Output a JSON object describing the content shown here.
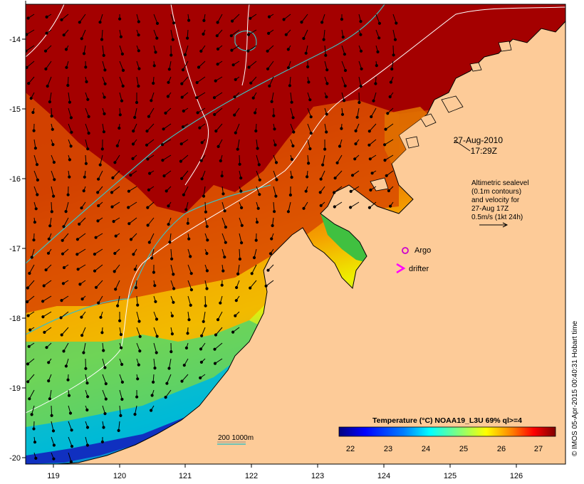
{
  "map": {
    "x_ticks": [
      "119",
      "120",
      "121",
      "122",
      "123",
      "124",
      "125",
      "126"
    ],
    "y_ticks": [
      "-14",
      "-15",
      "-16",
      "-17",
      "-18",
      "-19",
      "-20"
    ]
  },
  "annotations": {
    "date": "27-Aug-2010",
    "time": "17:29Z",
    "velocity_lines": [
      "Altimetric sealevel",
      "(0.1m contours)",
      "and velocity for",
      "27-Aug 17Z",
      "0.5m/s (1kt 24h)"
    ],
    "argo_label": "Argo",
    "drifter_label": "drifter",
    "isobath_label": "200  1000m"
  },
  "colorbar": {
    "title": "Temperature (°C) NOAA19_L3U 69% ql>=4",
    "ticks": [
      "22",
      "23",
      "24",
      "25",
      "26",
      "27"
    ],
    "colors": [
      "#00007f",
      "#0000ff",
      "#007fff",
      "#00ffff",
      "#7fff7f",
      "#ffff00",
      "#ff7f00",
      "#ff0000",
      "#7f0000"
    ]
  },
  "credit": "© IMOS 05-Apr-2015 00:40:31 Hobart time",
  "colors": {
    "land": "#fdcb98",
    "warm_water": "#a40000",
    "argo_marker": "#cc00cc",
    "drifter_marker": "#ff00ff",
    "isobath": "#3fbfbf",
    "sealevel_contour": "#ffffff"
  }
}
